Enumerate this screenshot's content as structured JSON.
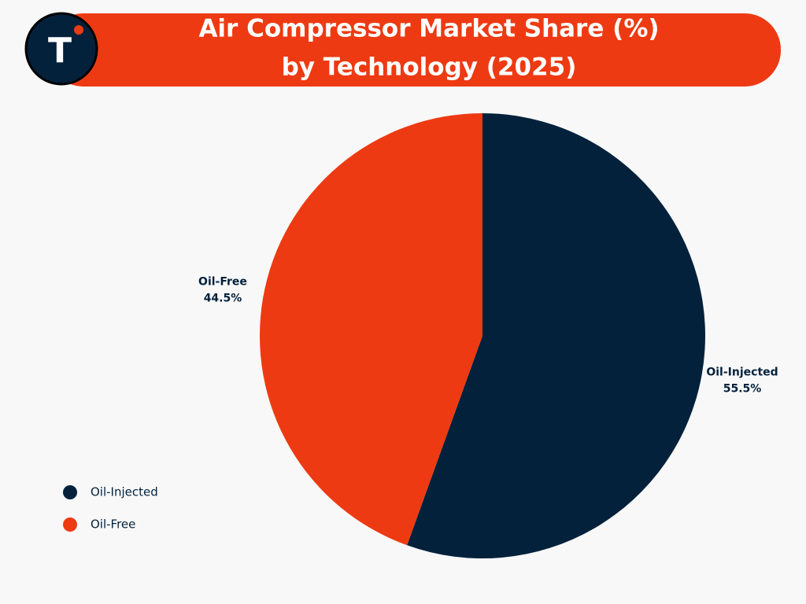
{
  "logo": "T",
  "chart_data": {
    "type": "pie",
    "title": [
      "Air Compressor Market Share (%)",
      "by Technology (2025)"
    ],
    "categories": [
      "Oil-Injected",
      "Oil-Free"
    ],
    "values": [
      55.5,
      44.5
    ],
    "value_labels": [
      "55.5%",
      "44.5%"
    ],
    "colors": [
      "#03213b",
      "#ee3a12"
    ],
    "legend": "bottom-left"
  }
}
